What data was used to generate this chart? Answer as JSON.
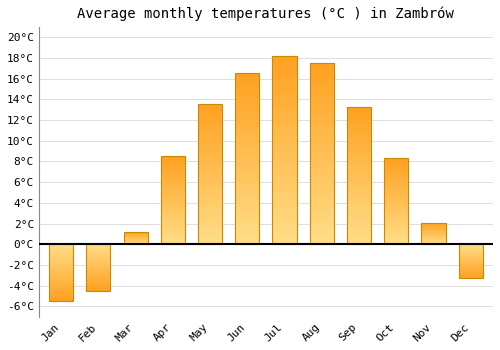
{
  "months": [
    "Jan",
    "Feb",
    "Mar",
    "Apr",
    "May",
    "Jun",
    "Jul",
    "Aug",
    "Sep",
    "Oct",
    "Nov",
    "Dec"
  ],
  "temperatures": [
    -5.5,
    -4.5,
    1.2,
    8.5,
    13.5,
    16.5,
    18.2,
    17.5,
    13.3,
    8.3,
    2.1,
    -3.3
  ],
  "bar_color_light": "#FFDD88",
  "bar_color_dark": "#FFA020",
  "bar_edge_color": "#CC8800",
  "title": "Average monthly temperatures (°C ) in Zambrów",
  "ylabel_ticks": [
    "-6°C",
    "-4°C",
    "-2°C",
    "0°C",
    "2°C",
    "4°C",
    "6°C",
    "8°C",
    "10°C",
    "12°C",
    "14°C",
    "16°C",
    "18°C",
    "20°C"
  ],
  "ytick_values": [
    -6,
    -4,
    -2,
    0,
    2,
    4,
    6,
    8,
    10,
    12,
    14,
    16,
    18,
    20
  ],
  "ylim": [
    -7,
    21
  ],
  "background_color": "#ffffff",
  "grid_color": "#dddddd",
  "title_fontsize": 10,
  "tick_fontsize": 8,
  "title_font": "monospace",
  "tick_font": "monospace",
  "bar_width": 0.65
}
